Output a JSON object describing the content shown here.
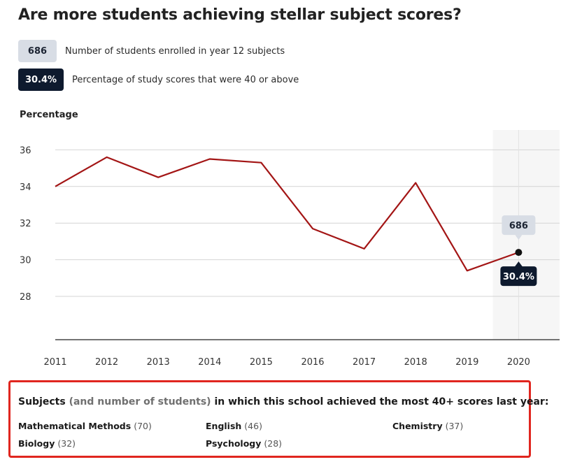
{
  "title": "Are more students achieving stellar subject scores?",
  "legend": [
    {
      "badge": "686",
      "text": "Number of students enrolled in year 12 subjects",
      "style": "light"
    },
    {
      "badge": "30.4%",
      "text": "Percentage of study scores that were 40 or above",
      "style": "dark"
    }
  ],
  "colors": {
    "line": "#a31515",
    "grid": "#d4d4d4",
    "axis": "#222222",
    "badge_dark": "#0e1a2e",
    "badge_light": "#d8dde5",
    "highlight_border": "#e0261f"
  },
  "chart_data": {
    "type": "line",
    "ylabel": "Percentage",
    "xlabel": "",
    "x": [
      "2011",
      "2012",
      "2013",
      "2014",
      "2015",
      "2016",
      "2017",
      "2018",
      "2019",
      "2020"
    ],
    "series": [
      {
        "values": [
          34.0,
          35.6,
          34.5,
          35.5,
          35.3,
          31.7,
          30.6,
          34.2,
          29.4,
          30.4
        ]
      }
    ],
    "y_ticks": [
      28,
      30,
      32,
      34,
      36
    ],
    "ylim": [
      25.5,
      37
    ],
    "grid": true,
    "annotation": {
      "year": "2020",
      "students": "686",
      "percentage": "30.4%"
    }
  },
  "subjects": {
    "title_bold": "Subjects",
    "title_dim": "(and number of students)",
    "title_rest": "in which this school achieved the most 40+ scores last year:",
    "items": [
      {
        "name": "Mathematical Methods",
        "count": "(70)"
      },
      {
        "name": "English",
        "count": "(46)"
      },
      {
        "name": "Chemistry",
        "count": "(37)"
      },
      {
        "name": "Biology",
        "count": "(32)"
      },
      {
        "name": "Psychology",
        "count": "(28)"
      }
    ]
  }
}
